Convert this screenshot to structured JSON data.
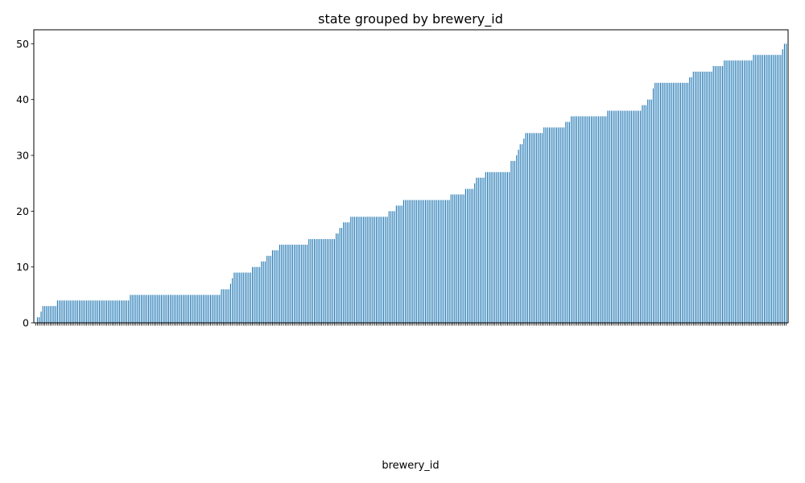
{
  "chart_data": {
    "type": "bar",
    "title": "state grouped by brewery_id",
    "xlabel": "brewery_id",
    "ylabel": "",
    "ylim": [
      0,
      52.5
    ],
    "yticks": [
      0,
      10,
      20,
      30,
      40,
      50
    ],
    "bar_color": "#1f77b4",
    "grid": false,
    "legend": "none",
    "values": [
      0,
      1,
      1,
      2,
      3,
      3,
      3,
      3,
      3,
      3,
      3,
      3,
      4,
      4,
      4,
      4,
      4,
      4,
      4,
      4,
      4,
      4,
      4,
      4,
      4,
      4,
      4,
      4,
      4,
      4,
      4,
      4,
      4,
      4,
      4,
      4,
      4,
      4,
      4,
      4,
      4,
      4,
      4,
      4,
      4,
      4,
      4,
      4,
      4,
      4,
      4,
      4,
      5,
      5,
      5,
      5,
      5,
      5,
      5,
      5,
      5,
      5,
      5,
      5,
      5,
      5,
      5,
      5,
      5,
      5,
      5,
      5,
      5,
      5,
      5,
      5,
      5,
      5,
      5,
      5,
      5,
      5,
      5,
      5,
      5,
      5,
      5,
      5,
      5,
      5,
      5,
      5,
      5,
      5,
      5,
      5,
      5,
      5,
      5,
      5,
      5,
      5,
      6,
      6,
      6,
      6,
      6,
      7,
      8,
      9,
      9,
      9,
      9,
      9,
      9,
      9,
      9,
      9,
      9,
      10,
      10,
      10,
      10,
      10,
      11,
      11,
      11,
      12,
      12,
      12,
      13,
      13,
      13,
      13,
      14,
      14,
      14,
      14,
      14,
      14,
      14,
      14,
      14,
      14,
      14,
      14,
      14,
      14,
      14,
      14,
      15,
      15,
      15,
      15,
      15,
      15,
      15,
      15,
      15,
      15,
      15,
      15,
      15,
      15,
      15,
      16,
      16,
      17,
      17,
      18,
      18,
      18,
      18,
      19,
      19,
      19,
      19,
      19,
      19,
      19,
      19,
      19,
      19,
      19,
      19,
      19,
      19,
      19,
      19,
      19,
      19,
      19,
      19,
      19,
      20,
      20,
      20,
      20,
      21,
      21,
      21,
      21,
      22,
      22,
      22,
      22,
      22,
      22,
      22,
      22,
      22,
      22,
      22,
      22,
      22,
      22,
      22,
      22,
      22,
      22,
      22,
      22,
      22,
      22,
      22,
      22,
      22,
      22,
      23,
      23,
      23,
      23,
      23,
      23,
      23,
      23,
      24,
      24,
      24,
      24,
      24,
      25,
      26,
      26,
      26,
      26,
      26,
      27,
      27,
      27,
      27,
      27,
      27,
      27,
      27,
      27,
      27,
      27,
      27,
      27,
      27,
      29,
      29,
      29,
      30,
      31,
      32,
      32,
      33,
      34,
      34,
      34,
      34,
      34,
      34,
      34,
      34,
      34,
      34,
      35,
      35,
      35,
      35,
      35,
      35,
      35,
      35,
      35,
      35,
      35,
      35,
      36,
      36,
      36,
      37,
      37,
      37,
      37,
      37,
      37,
      37,
      37,
      37,
      37,
      37,
      37,
      37,
      37,
      37,
      37,
      37,
      37,
      37,
      37,
      38,
      38,
      38,
      38,
      38,
      38,
      38,
      38,
      38,
      38,
      38,
      38,
      38,
      38,
      38,
      38,
      38,
      38,
      38,
      39,
      39,
      39,
      40,
      40,
      40,
      42,
      43,
      43,
      43,
      43,
      43,
      43,
      43,
      43,
      43,
      43,
      43,
      43,
      43,
      43,
      43,
      43,
      43,
      43,
      43,
      44,
      44,
      45,
      45,
      45,
      45,
      45,
      45,
      45,
      45,
      45,
      45,
      45,
      46,
      46,
      46,
      46,
      46,
      46,
      47,
      47,
      47,
      47,
      47,
      47,
      47,
      47,
      47,
      47,
      47,
      47,
      47,
      47,
      47,
      47,
      48,
      48,
      48,
      48,
      48,
      48,
      48,
      48,
      48,
      48,
      48,
      48,
      48,
      48,
      48,
      48,
      49,
      50,
      50
    ]
  }
}
